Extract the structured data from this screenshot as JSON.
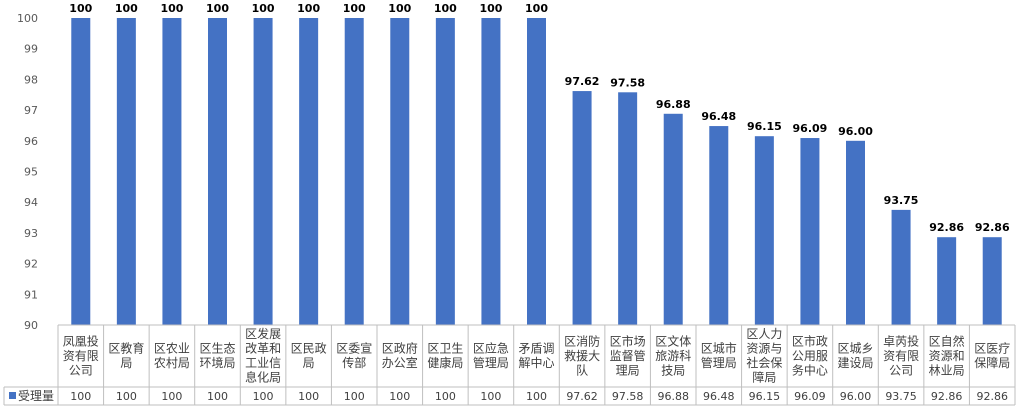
{
  "chart_data": {
    "type": "bar",
    "categories": [
      "凤凰投资有限公司",
      "区教育局",
      "区农业农村局",
      "区生态环境局",
      "区发展改革和工业信息化局",
      "区民政局",
      "区委宣传部",
      "区政府办公室",
      "区卫生健康局",
      "区应急管理局",
      "矛盾调解中心",
      "区消防救援大队",
      "区市场监督管理局",
      "区文体旅游科技局",
      "区城市管理局",
      "区人力资源与社会保障局",
      "区市政公用服务中心",
      "区城乡建设局",
      "卓芮投资有限公司",
      "区自然资源和林业局",
      "区医疗保障局"
    ],
    "category_lines": [
      [
        "凤凰投",
        "资有限",
        "公司"
      ],
      [
        "区教育",
        "局"
      ],
      [
        "区农业",
        "农村局"
      ],
      [
        "区生态",
        "环境局"
      ],
      [
        "区发展",
        "改革和",
        "工业信",
        "息化局"
      ],
      [
        "区民政",
        "局"
      ],
      [
        "区委宣",
        "传部"
      ],
      [
        "区政府",
        "办公室"
      ],
      [
        "区卫生",
        "健康局"
      ],
      [
        "区应急",
        "管理局"
      ],
      [
        "矛盾调",
        "解中心"
      ],
      [
        "区消防",
        "救援大",
        "队"
      ],
      [
        "区市场",
        "监督管",
        "理局"
      ],
      [
        "区文体",
        "旅游科",
        "技局"
      ],
      [
        "区城市",
        "管理局"
      ],
      [
        "区人力",
        "资源与",
        "社会保",
        "障局"
      ],
      [
        "区市政",
        "公用服",
        "务中心"
      ],
      [
        "区城乡",
        "建设局"
      ],
      [
        "卓芮投",
        "资有限",
        "公司"
      ],
      [
        "区自然",
        "资源和",
        "林业局"
      ],
      [
        "区医疗",
        "保障局"
      ]
    ],
    "series": [
      {
        "name": "受理量",
        "values": [
          100,
          100,
          100,
          100,
          100,
          100,
          100,
          100,
          100,
          100,
          100,
          97.62,
          97.58,
          96.88,
          96.48,
          96.15,
          96.09,
          96.0,
          93.75,
          92.86,
          92.86
        ],
        "labels": [
          "100",
          "100",
          "100",
          "100",
          "100",
          "100",
          "100",
          "100",
          "100",
          "100",
          "100",
          "97.62",
          "97.58",
          "96.88",
          "96.48",
          "96.15",
          "96.09",
          "96.00",
          "93.75",
          "92.86",
          "92.86"
        ]
      }
    ],
    "yticks": [
      "90",
      "91",
      "92",
      "93",
      "94",
      "95",
      "96",
      "97",
      "98",
      "99",
      "100"
    ],
    "ylim": [
      90,
      100
    ],
    "grid": false,
    "legend": "data-table-left",
    "colors": {
      "bar": "#4472C4",
      "axis": "#BFBFBF",
      "text": "#404040"
    }
  }
}
